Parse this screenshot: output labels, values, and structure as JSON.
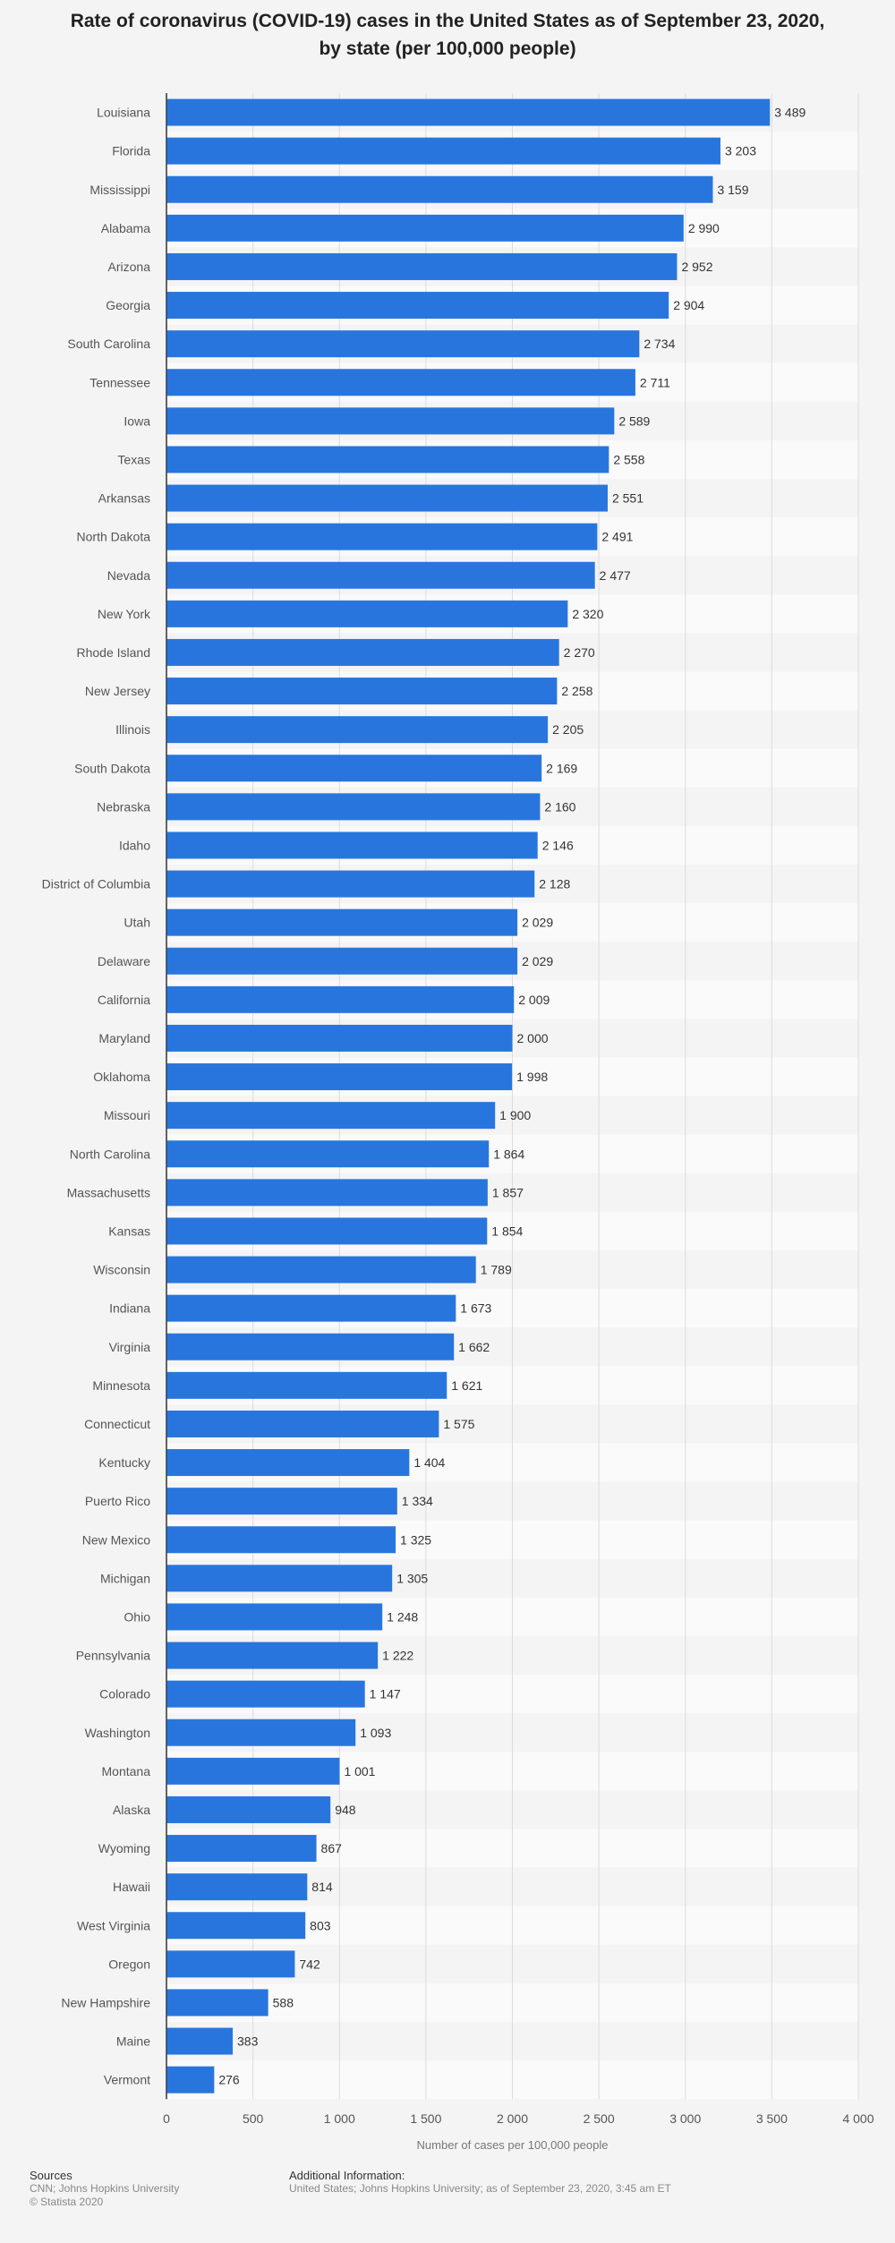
{
  "title_line1": "Rate of coronavirus (COVID-19) cases in the United States as of September 23, 2020,",
  "title_line2": "by state (per 100,000 people)",
  "footer": {
    "sources_heading": "Sources",
    "sources_line1": "CNN; Johns Hopkins University",
    "sources_line2": "© Statista 2020",
    "additional_heading": "Additional Information:",
    "additional_text": "United States; Johns Hopkins University; as of September 23, 2020, 3:45 am ET"
  },
  "chart_data": {
    "type": "bar",
    "orientation": "horizontal",
    "title": "Rate of coronavirus (COVID-19) cases in the United States as of September 23, 2020, by state (per 100,000 people)",
    "xlabel": "Number of cases per 100,000 people",
    "ylabel": "",
    "xlim": [
      0,
      4000
    ],
    "xticks": [
      0,
      500,
      1000,
      1500,
      2000,
      2500,
      3000,
      3500,
      4000
    ],
    "xtick_labels": [
      "0",
      "500",
      "1 000",
      "1 500",
      "2 000",
      "2 500",
      "3 000",
      "3 500",
      "4 000"
    ],
    "grid": true,
    "bar_color": "#2876dd",
    "categories": [
      "Louisiana",
      "Florida",
      "Mississippi",
      "Alabama",
      "Arizona",
      "Georgia",
      "South Carolina",
      "Tennessee",
      "Iowa",
      "Texas",
      "Arkansas",
      "North Dakota",
      "Nevada",
      "New York",
      "Rhode Island",
      "New Jersey",
      "Illinois",
      "South Dakota",
      "Nebraska",
      "Idaho",
      "District of Columbia",
      "Utah",
      "Delaware",
      "California",
      "Maryland",
      "Oklahoma",
      "Missouri",
      "North Carolina",
      "Massachusetts",
      "Kansas",
      "Wisconsin",
      "Indiana",
      "Virginia",
      "Minnesota",
      "Connecticut",
      "Kentucky",
      "Puerto Rico",
      "New Mexico",
      "Michigan",
      "Ohio",
      "Pennsylvania",
      "Colorado",
      "Washington",
      "Montana",
      "Alaska",
      "Wyoming",
      "Hawaii",
      "West Virginia",
      "Oregon",
      "New Hampshire",
      "Maine",
      "Vermont"
    ],
    "values": [
      3489,
      3203,
      3159,
      2990,
      2952,
      2904,
      2734,
      2711,
      2589,
      2558,
      2551,
      2491,
      2477,
      2320,
      2270,
      2258,
      2205,
      2169,
      2160,
      2146,
      2128,
      2029,
      2029,
      2009,
      2000,
      1998,
      1900,
      1864,
      1857,
      1854,
      1789,
      1673,
      1662,
      1621,
      1575,
      1404,
      1334,
      1325,
      1305,
      1248,
      1222,
      1147,
      1093,
      1001,
      948,
      867,
      814,
      803,
      742,
      588,
      383,
      276
    ],
    "value_labels": [
      "3 489",
      "3 203",
      "3 159",
      "2 990",
      "2 952",
      "2 904",
      "2 734",
      "2 711",
      "2 589",
      "2 558",
      "2 551",
      "2 491",
      "2 477",
      "2 320",
      "2 270",
      "2 258",
      "2 205",
      "2 169",
      "2 160",
      "2 146",
      "2 128",
      "2 029",
      "2 029",
      "2 009",
      "2 000",
      "1 998",
      "1 900",
      "1 864",
      "1 857",
      "1 854",
      "1 789",
      "1 673",
      "1 662",
      "1 621",
      "1 575",
      "1 404",
      "1 334",
      "1 325",
      "1 305",
      "1 248",
      "1 222",
      "1 147",
      "1 093",
      "1 001",
      "948",
      "867",
      "814",
      "803",
      "742",
      "588",
      "383",
      "276"
    ]
  }
}
